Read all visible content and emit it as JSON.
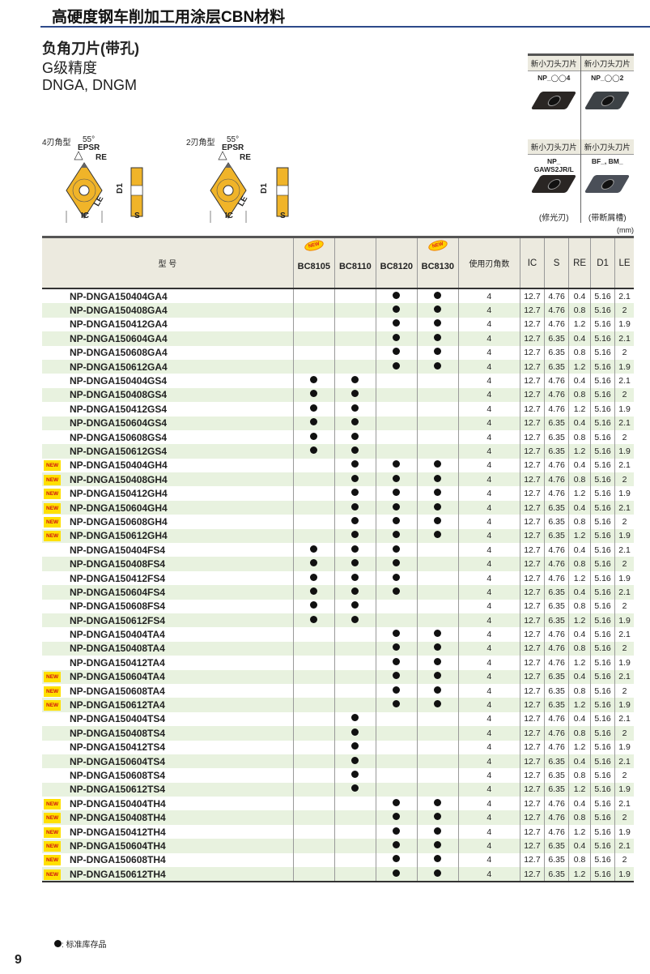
{
  "header": {
    "title": "高硬度钢车削加工用涂层CBN材料"
  },
  "titles": {
    "line1": "负角刀片(带孔)",
    "line2": "G级精度",
    "line3": "DNGA, DNGM"
  },
  "diagrams": [
    {
      "type": "4刃角型",
      "angle": "55°",
      "epsr": "EPSR",
      "re": "RE",
      "ic": "IC",
      "le": "LE",
      "d1": "D1",
      "s": "S"
    },
    {
      "type": "2刃角型",
      "angle": "55°",
      "epsr": "EPSR",
      "re": "RE",
      "ic": "IC",
      "le": "LE",
      "d1": "D1",
      "s": "S"
    }
  ],
  "photos": [
    {
      "header": "新小刀头刀片",
      "code": "NP_◯◯4",
      "note": "",
      "color": "#2a2624"
    },
    {
      "header": "新小刀头刀片",
      "code": "NP_◯◯2",
      "note": "",
      "color": "#3d4246"
    },
    {
      "header": "新小刀头刀片",
      "code": "NP_ GAWS2JR/L",
      "note": "(修光刃)",
      "color": "#2a2624"
    },
    {
      "header": "新小刀头刀片",
      "code": "BF_, BM_",
      "note": "(带断屑槽)",
      "color": "#4a4f58"
    }
  ],
  "unit": "(mm)",
  "table": {
    "headers": {
      "model": "型 号",
      "grades": [
        "BC8105",
        "BC8110",
        "BC8120",
        "BC8130"
      ],
      "edges": "使用刃角数",
      "ic": "IC",
      "s": "S",
      "re": "RE",
      "d1": "D1",
      "le": "LE"
    },
    "grade_new": [
      true,
      false,
      false,
      true
    ],
    "new_label": "NEW",
    "rows": [
      {
        "new": false,
        "model": "NP-DNGA150404GA4",
        "g": [
          0,
          0,
          1,
          1
        ],
        "edges": "4",
        "ic": "12.7",
        "s": "4.76",
        "re": "0.4",
        "d1": "5.16",
        "le": "2.1"
      },
      {
        "new": false,
        "model": "NP-DNGA150408GA4",
        "g": [
          0,
          0,
          1,
          1
        ],
        "edges": "4",
        "ic": "12.7",
        "s": "4.76",
        "re": "0.8",
        "d1": "5.16",
        "le": "2"
      },
      {
        "new": false,
        "model": "NP-DNGA150412GA4",
        "g": [
          0,
          0,
          1,
          1
        ],
        "edges": "4",
        "ic": "12.7",
        "s": "4.76",
        "re": "1.2",
        "d1": "5.16",
        "le": "1.9"
      },
      {
        "new": false,
        "model": "NP-DNGA150604GA4",
        "g": [
          0,
          0,
          1,
          1
        ],
        "edges": "4",
        "ic": "12.7",
        "s": "6.35",
        "re": "0.4",
        "d1": "5.16",
        "le": "2.1"
      },
      {
        "new": false,
        "model": "NP-DNGA150608GA4",
        "g": [
          0,
          0,
          1,
          1
        ],
        "edges": "4",
        "ic": "12.7",
        "s": "6.35",
        "re": "0.8",
        "d1": "5.16",
        "le": "2"
      },
      {
        "new": false,
        "model": "NP-DNGA150612GA4",
        "g": [
          0,
          0,
          1,
          1
        ],
        "edges": "4",
        "ic": "12.7",
        "s": "6.35",
        "re": "1.2",
        "d1": "5.16",
        "le": "1.9"
      },
      {
        "new": false,
        "model": "NP-DNGA150404GS4",
        "g": [
          1,
          1,
          0,
          0
        ],
        "edges": "4",
        "ic": "12.7",
        "s": "4.76",
        "re": "0.4",
        "d1": "5.16",
        "le": "2.1"
      },
      {
        "new": false,
        "model": "NP-DNGA150408GS4",
        "g": [
          1,
          1,
          0,
          0
        ],
        "edges": "4",
        "ic": "12.7",
        "s": "4.76",
        "re": "0.8",
        "d1": "5.16",
        "le": "2"
      },
      {
        "new": false,
        "model": "NP-DNGA150412GS4",
        "g": [
          1,
          1,
          0,
          0
        ],
        "edges": "4",
        "ic": "12.7",
        "s": "4.76",
        "re": "1.2",
        "d1": "5.16",
        "le": "1.9"
      },
      {
        "new": false,
        "model": "NP-DNGA150604GS4",
        "g": [
          1,
          1,
          0,
          0
        ],
        "edges": "4",
        "ic": "12.7",
        "s": "6.35",
        "re": "0.4",
        "d1": "5.16",
        "le": "2.1"
      },
      {
        "new": false,
        "model": "NP-DNGA150608GS4",
        "g": [
          1,
          1,
          0,
          0
        ],
        "edges": "4",
        "ic": "12.7",
        "s": "6.35",
        "re": "0.8",
        "d1": "5.16",
        "le": "2"
      },
      {
        "new": false,
        "model": "NP-DNGA150612GS4",
        "g": [
          1,
          1,
          0,
          0
        ],
        "edges": "4",
        "ic": "12.7",
        "s": "6.35",
        "re": "1.2",
        "d1": "5.16",
        "le": "1.9"
      },
      {
        "new": true,
        "model": "NP-DNGA150404GH4",
        "g": [
          0,
          1,
          1,
          1
        ],
        "edges": "4",
        "ic": "12.7",
        "s": "4.76",
        "re": "0.4",
        "d1": "5.16",
        "le": "2.1"
      },
      {
        "new": true,
        "model": "NP-DNGA150408GH4",
        "g": [
          0,
          1,
          1,
          1
        ],
        "edges": "4",
        "ic": "12.7",
        "s": "4.76",
        "re": "0.8",
        "d1": "5.16",
        "le": "2"
      },
      {
        "new": true,
        "model": "NP-DNGA150412GH4",
        "g": [
          0,
          1,
          1,
          1
        ],
        "edges": "4",
        "ic": "12.7",
        "s": "4.76",
        "re": "1.2",
        "d1": "5.16",
        "le": "1.9"
      },
      {
        "new": true,
        "model": "NP-DNGA150604GH4",
        "g": [
          0,
          1,
          1,
          1
        ],
        "edges": "4",
        "ic": "12.7",
        "s": "6.35",
        "re": "0.4",
        "d1": "5.16",
        "le": "2.1"
      },
      {
        "new": true,
        "model": "NP-DNGA150608GH4",
        "g": [
          0,
          1,
          1,
          1
        ],
        "edges": "4",
        "ic": "12.7",
        "s": "6.35",
        "re": "0.8",
        "d1": "5.16",
        "le": "2"
      },
      {
        "new": true,
        "model": "NP-DNGA150612GH4",
        "g": [
          0,
          1,
          1,
          1
        ],
        "edges": "4",
        "ic": "12.7",
        "s": "6.35",
        "re": "1.2",
        "d1": "5.16",
        "le": "1.9"
      },
      {
        "new": false,
        "model": "NP-DNGA150404FS4",
        "g": [
          1,
          1,
          1,
          0
        ],
        "edges": "4",
        "ic": "12.7",
        "s": "4.76",
        "re": "0.4",
        "d1": "5.16",
        "le": "2.1"
      },
      {
        "new": false,
        "model": "NP-DNGA150408FS4",
        "g": [
          1,
          1,
          1,
          0
        ],
        "edges": "4",
        "ic": "12.7",
        "s": "4.76",
        "re": "0.8",
        "d1": "5.16",
        "le": "2"
      },
      {
        "new": false,
        "model": "NP-DNGA150412FS4",
        "g": [
          1,
          1,
          1,
          0
        ],
        "edges": "4",
        "ic": "12.7",
        "s": "4.76",
        "re": "1.2",
        "d1": "5.16",
        "le": "1.9"
      },
      {
        "new": false,
        "model": "NP-DNGA150604FS4",
        "g": [
          1,
          1,
          1,
          0
        ],
        "edges": "4",
        "ic": "12.7",
        "s": "6.35",
        "re": "0.4",
        "d1": "5.16",
        "le": "2.1"
      },
      {
        "new": false,
        "model": "NP-DNGA150608FS4",
        "g": [
          1,
          1,
          0,
          0
        ],
        "edges": "4",
        "ic": "12.7",
        "s": "6.35",
        "re": "0.8",
        "d1": "5.16",
        "le": "2"
      },
      {
        "new": false,
        "model": "NP-DNGA150612FS4",
        "g": [
          1,
          1,
          0,
          0
        ],
        "edges": "4",
        "ic": "12.7",
        "s": "6.35",
        "re": "1.2",
        "d1": "5.16",
        "le": "1.9"
      },
      {
        "new": false,
        "model": "NP-DNGA150404TA4",
        "g": [
          0,
          0,
          1,
          1
        ],
        "edges": "4",
        "ic": "12.7",
        "s": "4.76",
        "re": "0.4",
        "d1": "5.16",
        "le": "2.1"
      },
      {
        "new": false,
        "model": "NP-DNGA150408TA4",
        "g": [
          0,
          0,
          1,
          1
        ],
        "edges": "4",
        "ic": "12.7",
        "s": "4.76",
        "re": "0.8",
        "d1": "5.16",
        "le": "2"
      },
      {
        "new": false,
        "model": "NP-DNGA150412TA4",
        "g": [
          0,
          0,
          1,
          1
        ],
        "edges": "4",
        "ic": "12.7",
        "s": "4.76",
        "re": "1.2",
        "d1": "5.16",
        "le": "1.9"
      },
      {
        "new": true,
        "model": "NP-DNGA150604TA4",
        "g": [
          0,
          0,
          1,
          1
        ],
        "edges": "4",
        "ic": "12.7",
        "s": "6.35",
        "re": "0.4",
        "d1": "5.16",
        "le": "2.1"
      },
      {
        "new": true,
        "model": "NP-DNGA150608TA4",
        "g": [
          0,
          0,
          1,
          1
        ],
        "edges": "4",
        "ic": "12.7",
        "s": "6.35",
        "re": "0.8",
        "d1": "5.16",
        "le": "2"
      },
      {
        "new": true,
        "model": "NP-DNGA150612TA4",
        "g": [
          0,
          0,
          1,
          1
        ],
        "edges": "4",
        "ic": "12.7",
        "s": "6.35",
        "re": "1.2",
        "d1": "5.16",
        "le": "1.9"
      },
      {
        "new": false,
        "model": "NP-DNGA150404TS4",
        "g": [
          0,
          1,
          0,
          0
        ],
        "edges": "4",
        "ic": "12.7",
        "s": "4.76",
        "re": "0.4",
        "d1": "5.16",
        "le": "2.1"
      },
      {
        "new": false,
        "model": "NP-DNGA150408TS4",
        "g": [
          0,
          1,
          0,
          0
        ],
        "edges": "4",
        "ic": "12.7",
        "s": "4.76",
        "re": "0.8",
        "d1": "5.16",
        "le": "2"
      },
      {
        "new": false,
        "model": "NP-DNGA150412TS4",
        "g": [
          0,
          1,
          0,
          0
        ],
        "edges": "4",
        "ic": "12.7",
        "s": "4.76",
        "re": "1.2",
        "d1": "5.16",
        "le": "1.9"
      },
      {
        "new": false,
        "model": "NP-DNGA150604TS4",
        "g": [
          0,
          1,
          0,
          0
        ],
        "edges": "4",
        "ic": "12.7",
        "s": "6.35",
        "re": "0.4",
        "d1": "5.16",
        "le": "2.1"
      },
      {
        "new": false,
        "model": "NP-DNGA150608TS4",
        "g": [
          0,
          1,
          0,
          0
        ],
        "edges": "4",
        "ic": "12.7",
        "s": "6.35",
        "re": "0.8",
        "d1": "5.16",
        "le": "2"
      },
      {
        "new": false,
        "model": "NP-DNGA150612TS4",
        "g": [
          0,
          1,
          0,
          0
        ],
        "edges": "4",
        "ic": "12.7",
        "s": "6.35",
        "re": "1.2",
        "d1": "5.16",
        "le": "1.9"
      },
      {
        "new": true,
        "model": "NP-DNGA150404TH4",
        "g": [
          0,
          0,
          1,
          1
        ],
        "edges": "4",
        "ic": "12.7",
        "s": "4.76",
        "re": "0.4",
        "d1": "5.16",
        "le": "2.1"
      },
      {
        "new": true,
        "model": "NP-DNGA150408TH4",
        "g": [
          0,
          0,
          1,
          1
        ],
        "edges": "4",
        "ic": "12.7",
        "s": "4.76",
        "re": "0.8",
        "d1": "5.16",
        "le": "2"
      },
      {
        "new": true,
        "model": "NP-DNGA150412TH4",
        "g": [
          0,
          0,
          1,
          1
        ],
        "edges": "4",
        "ic": "12.7",
        "s": "4.76",
        "re": "1.2",
        "d1": "5.16",
        "le": "1.9"
      },
      {
        "new": true,
        "model": "NP-DNGA150604TH4",
        "g": [
          0,
          0,
          1,
          1
        ],
        "edges": "4",
        "ic": "12.7",
        "s": "6.35",
        "re": "0.4",
        "d1": "5.16",
        "le": "2.1"
      },
      {
        "new": true,
        "model": "NP-DNGA150608TH4",
        "g": [
          0,
          0,
          1,
          1
        ],
        "edges": "4",
        "ic": "12.7",
        "s": "6.35",
        "re": "0.8",
        "d1": "5.16",
        "le": "2"
      },
      {
        "new": true,
        "model": "NP-DNGA150612TH4",
        "g": [
          0,
          0,
          1,
          1
        ],
        "edges": "4",
        "ic": "12.7",
        "s": "6.35",
        "re": "1.2",
        "d1": "5.16",
        "le": "1.9"
      }
    ]
  },
  "legend": {
    "text": ": 标准库存品"
  },
  "page_number": "9",
  "colors": {
    "header_rule": "#2d4a8a",
    "row_alt": "#e8f2df",
    "header_bg": "#eceadf",
    "insert_gold": "#f0b429",
    "new_tag": "#ffe000"
  }
}
